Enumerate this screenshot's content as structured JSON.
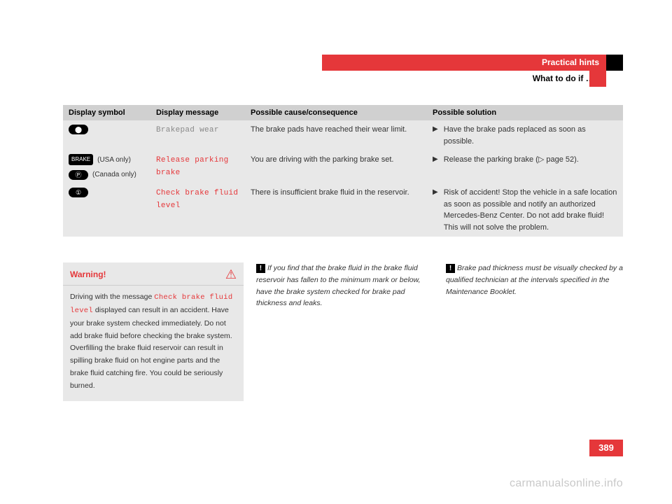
{
  "header": {
    "title": "Practical hints",
    "subtitle": "What to do if …?"
  },
  "table": {
    "headers": {
      "symbol": "Display symbol",
      "message": "Display message",
      "cause": "Possible cause/consequence",
      "solution": "Possible solution"
    },
    "rows": [
      {
        "symbol_icons": [
          {
            "glyph": "⬤",
            "note": ""
          }
        ],
        "message": "Brakepad wear",
        "message_style": "grey",
        "cause": "The brake pads have reached their wear limit.",
        "solution": "Have the brake pads replaced as soon as possible."
      },
      {
        "symbol_icons": [
          {
            "glyph": "BRAKE",
            "note": "(USA only)"
          },
          {
            "glyph": "Ⓟ",
            "note": "(Canada only)"
          }
        ],
        "message": "Release parking brake",
        "message_style": "red",
        "cause": "You are driving with the parking brake set.",
        "solution": "Release the parking brake (▷ page 52)."
      },
      {
        "symbol_icons": [
          {
            "glyph": "①",
            "note": ""
          }
        ],
        "message": "Check brake fluid level",
        "message_style": "red",
        "cause": "There is insufficient brake fluid in the reservoir.",
        "solution": "Risk of accident! Stop the vehicle in a safe location as soon as possible and notify an authorized Mercedes-Benz Center. Do not add brake fluid! This will not solve the problem."
      }
    ]
  },
  "warning": {
    "title": "Warning!",
    "body_pre": "Driving with the message ",
    "body_code": "Check brake fluid level",
    "body_post": " displayed can result in an accident. Have your brake system checked immediately. Do not add brake fluid before checking the brake system. Overfilling the brake fluid reservoir can result in spilling brake fluid on hot engine parts and the brake fluid catching fire. You could be seriously burned."
  },
  "notes": [
    "If you find that the brake fluid in the brake fluid reservoir has fallen to the minimum mark or below, have the brake system checked for brake pad thickness and leaks.",
    "Brake pad thickness must be visually checked by a qualified technician at the intervals specified in the Maintenance Booklet."
  ],
  "page_number": "389",
  "watermark": "carmanualsonline.info"
}
